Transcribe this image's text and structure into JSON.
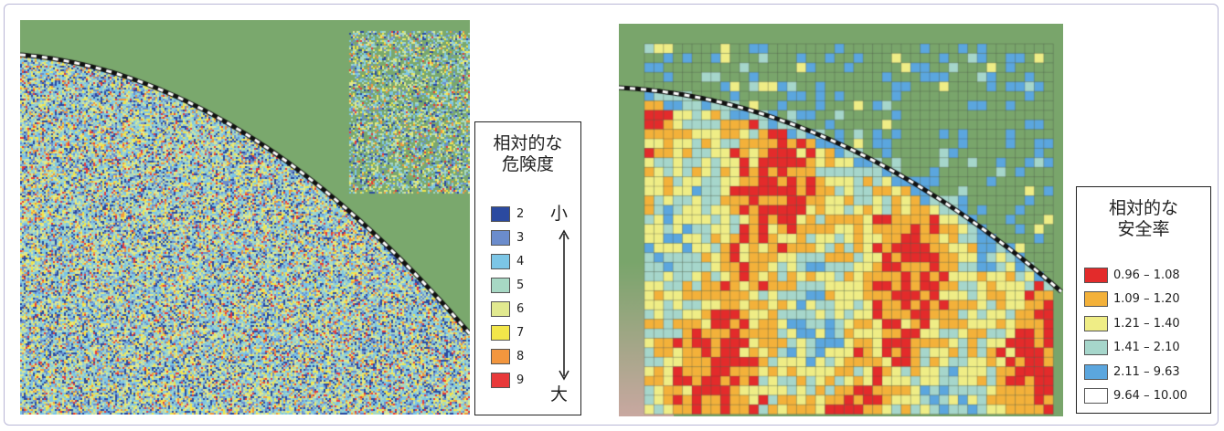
{
  "left_panel": {
    "legend": {
      "title_line1": "相対的な",
      "title_line2": "危険度",
      "items": [
        {
          "label": "2",
          "color": "#2b4aa0"
        },
        {
          "label": "3",
          "color": "#6b8ccc"
        },
        {
          "label": "4",
          "color": "#7cc6e6"
        },
        {
          "label": "5",
          "color": "#a7d8c4"
        },
        {
          "label": "6",
          "color": "#e1e98f"
        },
        {
          "label": "7",
          "color": "#f2e64a"
        },
        {
          "label": "8",
          "color": "#f2963e"
        },
        {
          "label": "9",
          "color": "#e8393a"
        }
      ],
      "scale_small": "小",
      "scale_large": "大"
    }
  },
  "right_panel": {
    "legend": {
      "title_line1": "相対的な",
      "title_line2": "安全率",
      "items": [
        {
          "label": "0.96 – 1.08",
          "color": "#e32b2b"
        },
        {
          "label": "1.09 – 1.20",
          "color": "#f3b13a"
        },
        {
          "label": "1.21 – 1.40",
          "color": "#efed86"
        },
        {
          "label": "1.41 – 2.10",
          "color": "#a6d6cb"
        },
        {
          "label": "2.11 – 9.63",
          "color": "#5ba6de"
        },
        {
          "label": "9.64 – 10.00",
          "color": "#ffffff"
        }
      ]
    }
  }
}
